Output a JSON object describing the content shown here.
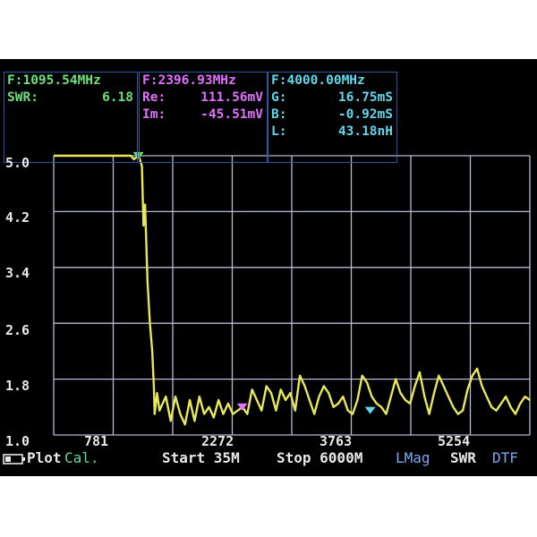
{
  "markers": [
    {
      "freq": "F:1095.54MHz",
      "rows": [
        {
          "label": "SWR:",
          "value": "6.18"
        }
      ]
    },
    {
      "freq": "F:2396.93MHz",
      "rows": [
        {
          "label": "Re:",
          "value": "111.56mV"
        },
        {
          "label": "Im:",
          "value": "-45.51mV"
        }
      ]
    },
    {
      "freq": "F:4000.00MHz",
      "rows": [
        {
          "label": "G:",
          "value": "16.75mS"
        },
        {
          "label": "B:",
          "value": "-0.92mS"
        },
        {
          "label": "L:",
          "value": "43.18nH"
        }
      ]
    }
  ],
  "chart_data": {
    "type": "line",
    "y_ticks": [
      "5.0",
      "4.2",
      "3.4",
      "2.6",
      "1.8",
      "1.0"
    ],
    "x_ticks": [
      "781",
      "2272",
      "3763",
      "5254"
    ],
    "x_tick_values": [
      781,
      2272,
      3763,
      5254
    ],
    "xlim": [
      35,
      6000
    ],
    "ylim": [
      1.0,
      5.0
    ],
    "grid": true,
    "series": [
      {
        "color": "#e8e85a",
        "x": [
          35,
          250,
          500,
          800,
          1000,
          1040,
          1100,
          1140,
          1160,
          1180,
          1210,
          1240,
          1270,
          1290,
          1300,
          1330,
          1360,
          1400,
          1440,
          1500,
          1560,
          1620,
          1680,
          1740,
          1800,
          1860,
          1920,
          1980,
          2040,
          2100,
          2160,
          2220,
          2280,
          2340,
          2400,
          2460,
          2520,
          2580,
          2640,
          2700,
          2760,
          2820,
          2880,
          2940,
          3000,
          3060,
          3120,
          3180,
          3240,
          3300,
          3360,
          3420,
          3480,
          3540,
          3600,
          3660,
          3720,
          3780,
          3840,
          3900,
          3960,
          4020,
          4080,
          4140,
          4200,
          4260,
          4320,
          4380,
          4440,
          4500,
          4560,
          4620,
          4680,
          4740,
          4800,
          4860,
          4920,
          4980,
          5040,
          5100,
          5160,
          5220,
          5280,
          5340,
          5400,
          5460,
          5520,
          5580,
          5640,
          5700,
          5760,
          5820,
          5880,
          5940,
          6000
        ],
        "y": [
          5.0,
          5.0,
          5.0,
          5.0,
          5.0,
          4.95,
          5.0,
          4.85,
          4.0,
          4.3,
          3.2,
          2.6,
          2.2,
          1.7,
          1.3,
          1.6,
          1.35,
          1.45,
          1.55,
          1.2,
          1.55,
          1.3,
          1.15,
          1.5,
          1.2,
          1.55,
          1.3,
          1.4,
          1.25,
          1.5,
          1.3,
          1.45,
          1.3,
          1.35,
          1.4,
          1.3,
          1.65,
          1.5,
          1.35,
          1.7,
          1.6,
          1.35,
          1.65,
          1.5,
          1.6,
          1.35,
          1.85,
          1.7,
          1.5,
          1.3,
          1.55,
          1.7,
          1.6,
          1.4,
          1.45,
          1.55,
          1.35,
          1.3,
          1.5,
          1.85,
          1.75,
          1.55,
          1.45,
          1.4,
          1.3,
          1.55,
          1.8,
          1.6,
          1.5,
          1.45,
          1.7,
          1.9,
          1.55,
          1.3,
          1.6,
          1.85,
          1.7,
          1.55,
          1.4,
          1.3,
          1.35,
          1.65,
          1.85,
          1.95,
          1.7,
          1.55,
          1.4,
          1.35,
          1.45,
          1.55,
          1.4,
          1.3,
          1.45,
          1.55,
          1.5
        ]
      }
    ]
  },
  "bottom": {
    "plot": "Plot",
    "cal": "Cal.",
    "start": "Start 35M",
    "stop": "Stop 6000M",
    "lmag": "LMag",
    "swr": "SWR",
    "dtf": "DTF"
  },
  "colors": {
    "trace": "#e8e85a",
    "grid": "#b8b8d8",
    "marker_border": "#2c5aa0",
    "marker1": "#6ee07a",
    "marker2": "#e070ff",
    "marker3": "#5fd8ec"
  }
}
